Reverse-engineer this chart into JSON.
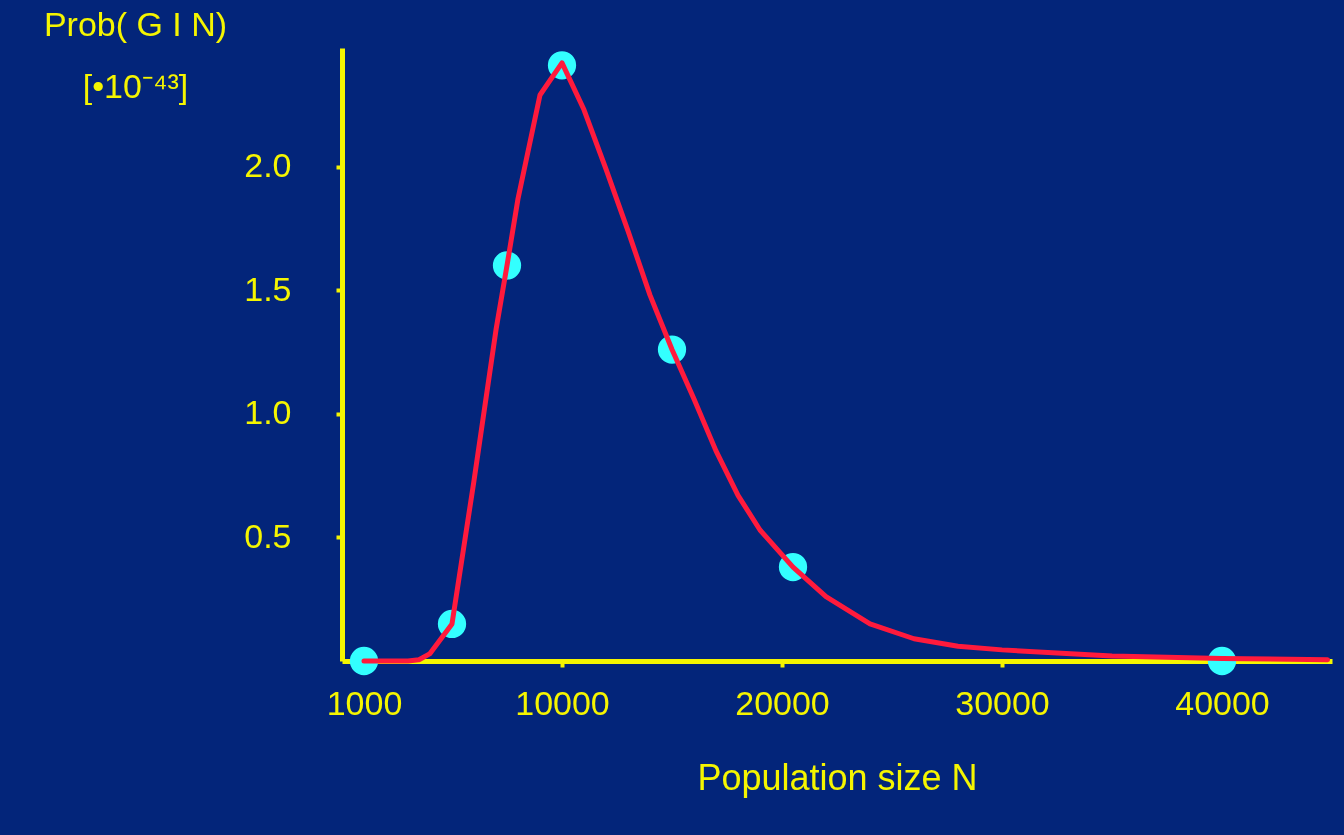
{
  "chart_data": {
    "type": "line",
    "xlabel": "Population size N",
    "ylabel": "Prob( G I N)\n[•10⁻⁴³]",
    "xlim": [
      0,
      45000
    ],
    "ylim": [
      0,
      2.48
    ],
    "xticks": [
      1000,
      10000,
      20000,
      30000,
      40000
    ],
    "yticks": [
      0.5,
      {
        "value": 1,
        "label": "1.0"
      },
      1.5,
      {
        "value": 2,
        "label": "2.0"
      }
    ],
    "grid": false,
    "series": [
      {
        "color": "#ff1a3c",
        "marker": "none",
        "x": [
          1000,
          2000,
          3000,
          3500,
          4000,
          5000,
          6000,
          7000,
          7500,
          8000,
          9000,
          10000,
          11000,
          12000,
          13000,
          14000,
          15000,
          16000,
          17000,
          18000,
          19000,
          20500,
          22000,
          24000,
          26000,
          28000,
          30000,
          35000,
          40000,
          44800
        ],
        "values": [
          0,
          0,
          0,
          0.005,
          0.03,
          0.15,
          0.73,
          1.34,
          1.6,
          1.87,
          2.29,
          2.42,
          2.23,
          1.99,
          1.74,
          1.48,
          1.26,
          1.06,
          0.85,
          0.67,
          0.53,
          0.38,
          0.26,
          0.15,
          0.09,
          0.06,
          0.045,
          0.02,
          0.01,
          0.005
        ]
      },
      {
        "type": "scatter",
        "color": "#33ffff",
        "marker": "circle",
        "x": [
          1000,
          5000,
          7500,
          10000,
          15000,
          20500,
          40000
        ],
        "values": [
          0,
          0.15,
          1.6,
          2.41,
          1.26,
          0.38,
          0
        ]
      }
    ]
  }
}
